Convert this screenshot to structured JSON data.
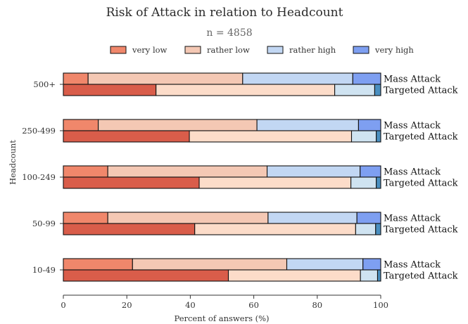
{
  "chart_data": {
    "type": "bar",
    "orientation": "horizontal-stacked",
    "title": "Risk of Attack in relation to Headcount",
    "subtitle": "n = 4858",
    "xlabel": "Percent of answers (%)",
    "ylabel": "Headcount",
    "xlim": [
      0,
      100
    ],
    "xticks": [
      "0",
      "20",
      "40",
      "60",
      "80",
      "100"
    ],
    "legend_position": "top",
    "legend": [
      {
        "label": "very low",
        "color": "#f0876b"
      },
      {
        "label": "rather low",
        "color": "#f4c8b4"
      },
      {
        "label": "rather high",
        "color": "#c2d7f3"
      },
      {
        "label": "very high",
        "color": "#7e9ff1"
      }
    ],
    "categories": [
      "500+",
      "250-499",
      "100-249",
      "50-99",
      "10-49"
    ],
    "bar_labels": [
      "Mass Attack",
      "Targeted Attack"
    ],
    "series": [
      {
        "name": "Mass Attack",
        "colors": [
          "#f0876b",
          "#f4c8b4",
          "#c2d7f3",
          "#7e9ff1"
        ],
        "values": [
          [
            7.8,
            48.7,
            34.7,
            8.8
          ],
          [
            11.0,
            50.0,
            32.0,
            7.0
          ],
          [
            14.0,
            50.2,
            29.3,
            6.5
          ],
          [
            14.0,
            50.5,
            28.0,
            7.5
          ],
          [
            21.8,
            48.6,
            24.0,
            5.6
          ]
        ]
      },
      {
        "name": "Targeted Attack",
        "colors": [
          "#d95d4a",
          "#fcdcc9",
          "#cfe3f1",
          "#4a8fc0"
        ],
        "values": [
          [
            29.2,
            56.3,
            12.6,
            1.9
          ],
          [
            39.7,
            51.1,
            7.8,
            1.4
          ],
          [
            42.8,
            47.8,
            8.0,
            1.4
          ],
          [
            41.4,
            50.7,
            6.3,
            1.6
          ],
          [
            52.0,
            41.6,
            5.4,
            1.0
          ]
        ]
      }
    ]
  }
}
